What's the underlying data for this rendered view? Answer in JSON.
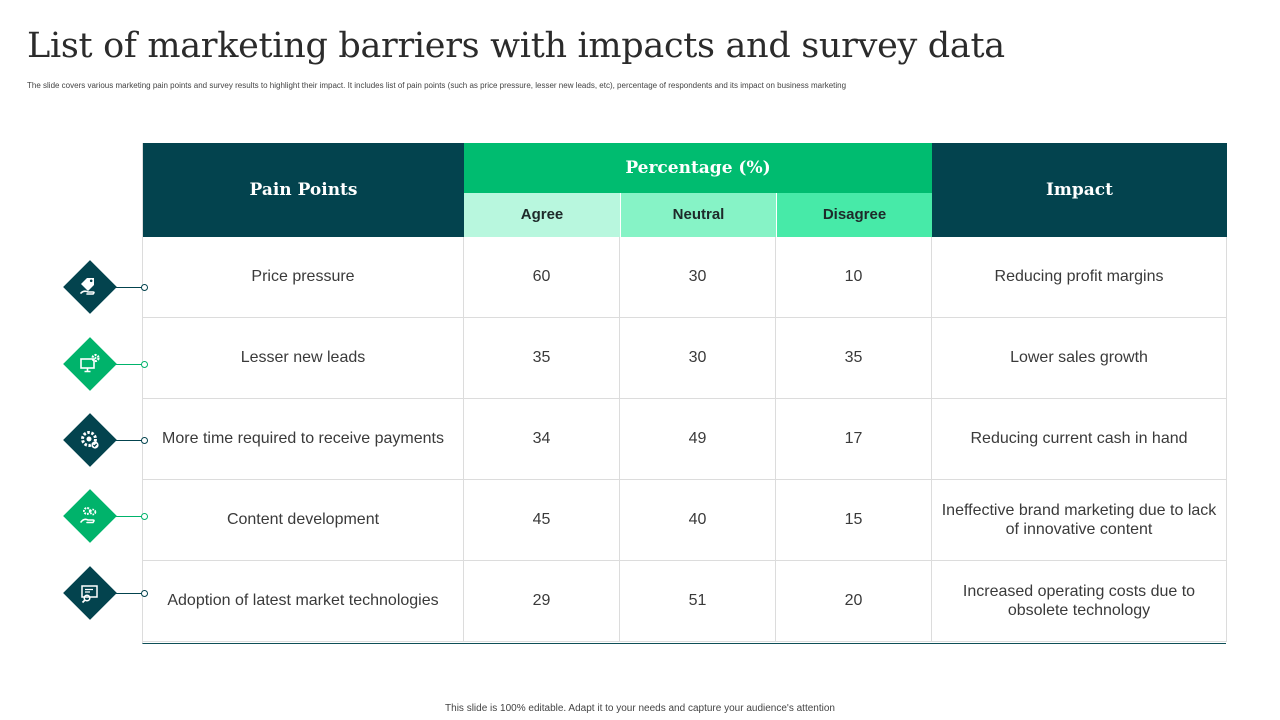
{
  "title": "List of  marketing barriers with impacts and survey data",
  "subtitle": "The  slide covers various marketing pain points and  survey results to highlight their impact.  It includes list of pain points (such as price pressure,  lesser new  leads, etc), percentage  of respondents and its impact on business marketing",
  "table": {
    "headers": {
      "pain_points": "Pain Points",
      "percentage": "Percentage (%)",
      "agree": "Agree",
      "neutral": "Neutral",
      "disagree": "Disagree",
      "impact": "Impact"
    },
    "rows": [
      {
        "pain_point": "Price pressure",
        "agree": "60",
        "neutral": "30",
        "disagree": "10",
        "impact": "Reducing profit margins",
        "icon": "price-tag-hand-icon",
        "color": "#03434e"
      },
      {
        "pain_point": "Lesser new leads",
        "agree": "35",
        "neutral": "30",
        "disagree": "35",
        "impact": "Lower sales growth",
        "icon": "monitor-gear-icon",
        "color": "#00b36b"
      },
      {
        "pain_point": "More time required to receive payments",
        "agree": "34",
        "neutral": "49",
        "disagree": "17",
        "impact": "Reducing current cash in hand",
        "icon": "gear-check-icon",
        "color": "#03434e"
      },
      {
        "pain_point": "Content development",
        "agree": "45",
        "neutral": "40",
        "disagree": "15",
        "impact": "Ineffective  brand marketing due to lack of innovative  content",
        "icon": "hand-gears-icon",
        "color": "#00b36b"
      },
      {
        "pain_point": "Adoption of latest market technologies",
        "agree": "29",
        "neutral": "51",
        "disagree": "20",
        "impact": "Increased operating costs due to obsolete technology",
        "icon": "certificate-search-icon",
        "color": "#03434e"
      }
    ]
  },
  "footer": "This slide is 100% editable.  Adapt it to your needs and capture your audience's attention"
}
